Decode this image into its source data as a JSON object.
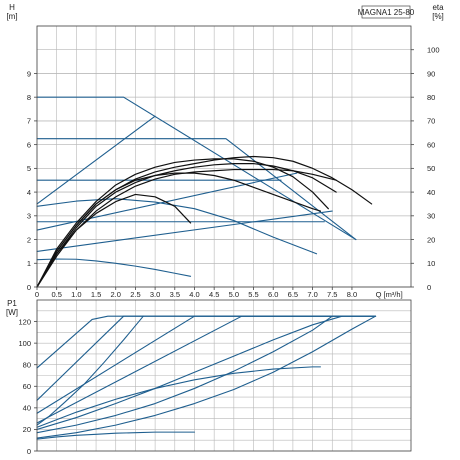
{
  "chart_data": [
    {
      "type": "line",
      "panel": "pump-head",
      "model": "MAGNA1 25-80",
      "xlabel": "Q [m³/h]",
      "ylabel": "H\n[m]",
      "ylabel_right": "eta\n[%]",
      "xlim": [
        0,
        9.5
      ],
      "ylim": [
        0,
        11
      ],
      "ylim_right": [
        0,
        110
      ],
      "x_ticks": [
        0,
        0.5,
        1,
        1.5,
        2,
        2.5,
        3,
        3.5,
        4,
        4.5,
        5,
        5.5,
        6,
        6.5,
        7,
        7.5,
        8
      ],
      "x_tick_labels": [
        "0",
        "0.5",
        "1.0",
        "1.5",
        "2.0",
        "2.5",
        "3.0",
        "3.5",
        "4.0",
        "4.5",
        "5.0",
        "5.5",
        "6.0",
        "6.5",
        "7.0",
        "7.5",
        "8.0"
      ],
      "y_ticks": [
        0,
        1,
        2,
        3,
        4,
        5,
        6,
        7,
        8,
        9
      ],
      "y_tick_labels_right": [
        "0",
        "10",
        "20",
        "30",
        "40",
        "50",
        "60",
        "70",
        "80",
        "90",
        "100"
      ],
      "grid": true,
      "series": [
        {
          "kind": "blue",
          "x": [
            0,
            2.2,
            8.1
          ],
          "y": [
            8,
            8,
            2
          ]
        },
        {
          "kind": "blue",
          "x": [
            0,
            3.0
          ],
          "y": [
            3.5,
            7.2
          ]
        },
        {
          "kind": "blue",
          "x": [
            0,
            6.6
          ],
          "y": [
            2.4,
            4.8
          ]
        },
        {
          "kind": "blue",
          "x": [
            0,
            7.5
          ],
          "y": [
            1.5,
            3.2
          ]
        },
        {
          "kind": "blue",
          "x": [
            0,
            4.8,
            8.1
          ],
          "y": [
            6.25,
            6.25,
            2
          ]
        },
        {
          "kind": "blue",
          "x": [
            0,
            6.2
          ],
          "y": [
            4.5,
            4.5
          ]
        },
        {
          "kind": "blue",
          "x": [
            0,
            7.3
          ],
          "y": [
            2.75,
            2.75
          ]
        },
        {
          "kind": "blue",
          "x": [
            0,
            1.0,
            2.0,
            3.0,
            4.0,
            5.0,
            6.0,
            7.1
          ],
          "y": [
            3.4,
            3.62,
            3.72,
            3.58,
            3.3,
            2.8,
            2.1,
            1.4
          ]
        },
        {
          "kind": "blue",
          "x": [
            0,
            0.5,
            1.0,
            1.5,
            2.0,
            2.5,
            3.0,
            3.5,
            3.9
          ],
          "y": [
            1.15,
            1.18,
            1.17,
            1.1,
            1.0,
            0.88,
            0.74,
            0.58,
            0.45
          ]
        },
        {
          "kind": "eta",
          "x": [
            0,
            0.5,
            1.0,
            1.5,
            2.0,
            2.5,
            3.0,
            3.5,
            4.0,
            4.5,
            5.0,
            5.5,
            6.0,
            6.5,
            7.0,
            7.5,
            8.0,
            8.5
          ],
          "y": [
            0,
            15,
            26,
            35,
            41,
            45.5,
            48.5,
            50.5,
            52,
            53.5,
            54.5,
            55,
            54.5,
            53,
            50,
            46,
            41,
            35
          ]
        },
        {
          "kind": "eta",
          "x": [
            0,
            0.5,
            1.0,
            1.5,
            2.0,
            2.5,
            3.0,
            3.5,
            4.0,
            4.5,
            5.0,
            5.5,
            6.0,
            6.5,
            7.0,
            7.4
          ],
          "y": [
            0,
            16,
            27,
            36,
            43,
            47.5,
            50.5,
            52.5,
            53.5,
            54,
            54,
            53,
            50.5,
            46.5,
            40,
            33
          ]
        },
        {
          "kind": "eta",
          "x": [
            0,
            0.5,
            1.0,
            1.5,
            2.0,
            2.5,
            3.0,
            3.5,
            4.0,
            4.5,
            5.0,
            5.5,
            6.0,
            6.5,
            7.0,
            7.6
          ],
          "y": [
            0,
            14,
            25,
            34,
            40,
            44,
            47,
            49,
            50.5,
            51.5,
            52,
            52,
            51,
            49,
            46,
            40
          ]
        },
        {
          "kind": "eta",
          "x": [
            0,
            0.5,
            1.0,
            1.5,
            2.0,
            2.5,
            3.0,
            3.5,
            4.0,
            4.5,
            5.0,
            5.5,
            6.0,
            6.5,
            7.0,
            7.6
          ],
          "y": [
            0,
            13,
            24,
            32,
            38,
            42.5,
            45.5,
            47.5,
            48.5,
            49,
            49.5,
            49.5,
            49.5,
            49,
            47.5,
            45
          ]
        },
        {
          "kind": "eta",
          "x": [
            0,
            0.5,
            1.0,
            1.5,
            2.0,
            2.5,
            3.0,
            3.5,
            4.0,
            4.5,
            5.0,
            5.5,
            6.0,
            6.5,
            7.0,
            7.2
          ],
          "y": [
            0,
            15,
            26,
            35,
            41,
            45,
            47,
            48,
            48,
            47,
            45,
            42,
            39,
            36,
            33,
            32
          ]
        },
        {
          "kind": "eta",
          "x": [
            0,
            0.5,
            1.0,
            1.5,
            2.0,
            2.5,
            3.0,
            3.5,
            3.9
          ],
          "y": [
            0,
            14,
            24,
            31,
            36,
            39,
            38,
            34,
            27
          ]
        }
      ]
    },
    {
      "type": "line",
      "panel": "power",
      "xlabel": "",
      "ylabel": "P1\n[W]",
      "xlim": [
        0,
        9.5
      ],
      "ylim": [
        0,
        140
      ],
      "y_ticks": [
        0,
        20,
        40,
        60,
        80,
        100,
        120
      ],
      "y_tick_labels": [
        "0",
        "20",
        "40",
        "60",
        "80",
        "100",
        "120"
      ],
      "grid": true,
      "series": [
        {
          "kind": "blue",
          "x": [
            0,
            1.4,
            1.8,
            8.6
          ],
          "y": [
            77,
            122,
            125,
            125
          ]
        },
        {
          "kind": "blue",
          "x": [
            0,
            2.2,
            8.6
          ],
          "y": [
            47,
            125,
            125
          ]
        },
        {
          "kind": "blue",
          "x": [
            0,
            4.0,
            8.6
          ],
          "y": [
            35,
            125,
            125
          ]
        },
        {
          "kind": "blue",
          "x": [
            0,
            5.2,
            8.6
          ],
          "y": [
            26,
            125,
            125
          ]
        },
        {
          "kind": "blue",
          "x": [
            0,
            1.0,
            2.0,
            3.0,
            4.0,
            5.0,
            6.0,
            7.0,
            7.75
          ],
          "y": [
            20,
            31,
            44,
            58,
            73,
            88,
            103,
            117,
            125
          ]
        },
        {
          "kind": "blue",
          "x": [
            0,
            1.0,
            2.0,
            3.0,
            4.0,
            5.0,
            6.0,
            7.0,
            7.5
          ],
          "y": [
            17,
            24,
            33,
            44,
            58,
            74,
            92,
            112,
            125
          ]
        },
        {
          "kind": "blue",
          "x": [
            0,
            1.0,
            2.0,
            3.0,
            4.0,
            5.0,
            6.0,
            7.0,
            8.0,
            8.6
          ],
          "y": [
            12,
            17,
            24,
            33,
            44,
            57,
            73,
            92,
            113,
            125
          ]
        },
        {
          "kind": "blue",
          "x": [
            0,
            0.3,
            0.7,
            1.2,
            1.7,
            2.2,
            2.7
          ],
          "y": [
            24,
            32,
            45,
            62,
            82,
            103,
            125
          ]
        },
        {
          "kind": "blue",
          "x": [
            0,
            0.5,
            1.0,
            1.5,
            2.0,
            2.5,
            3.0,
            3.5,
            4.0
          ],
          "y": [
            11,
            13,
            14.5,
            15.5,
            16.5,
            17,
            17.5,
            17.5,
            17.5
          ]
        },
        {
          "kind": "blue",
          "x": [
            0,
            1.0,
            2.0,
            3.0,
            4.0,
            5.0,
            6.0,
            7.0,
            7.2
          ],
          "y": [
            22,
            36,
            48,
            58,
            66,
            72,
            76,
            78,
            78
          ]
        }
      ]
    }
  ]
}
